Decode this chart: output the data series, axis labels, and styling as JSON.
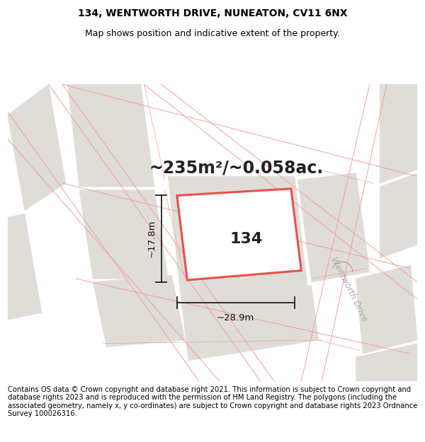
{
  "title_line1": "134, WENTWORTH DRIVE, NUNEATON, CV11 6NX",
  "title_line2": "Map shows position and indicative extent of the property.",
  "area_text": "~235m²/~0.058ac.",
  "label_134": "134",
  "dim_width": "~28.9m",
  "dim_height": "~17.8m",
  "road_label": "Wentworth Drive",
  "footer_text": "Contains OS data © Crown copyright and database right 2021. This information is subject to Crown copyright and database rights 2023 and is reproduced with the permission of HM Land Registry. The polygons (including the associated geometry, namely x, y co-ordinates) are subject to Crown copyright and database rights 2023 Ordnance Survey 100026316.",
  "bg_color": "#ffffff",
  "map_bg": "#f7f5f2",
  "plot_fill": "#e8e5e0",
  "plot_edge_color": "#e8514a",
  "road_line_color": "#f0a0a0",
  "gray_block_color": "#e0ddd8",
  "title_fontsize": 10,
  "subtitle_fontsize": 9,
  "area_fontsize": 17,
  "label_fontsize": 16,
  "footer_fontsize": 7.2,
  "dim_arrow_color": "#222222",
  "road_label_color": "#aaaaaa"
}
